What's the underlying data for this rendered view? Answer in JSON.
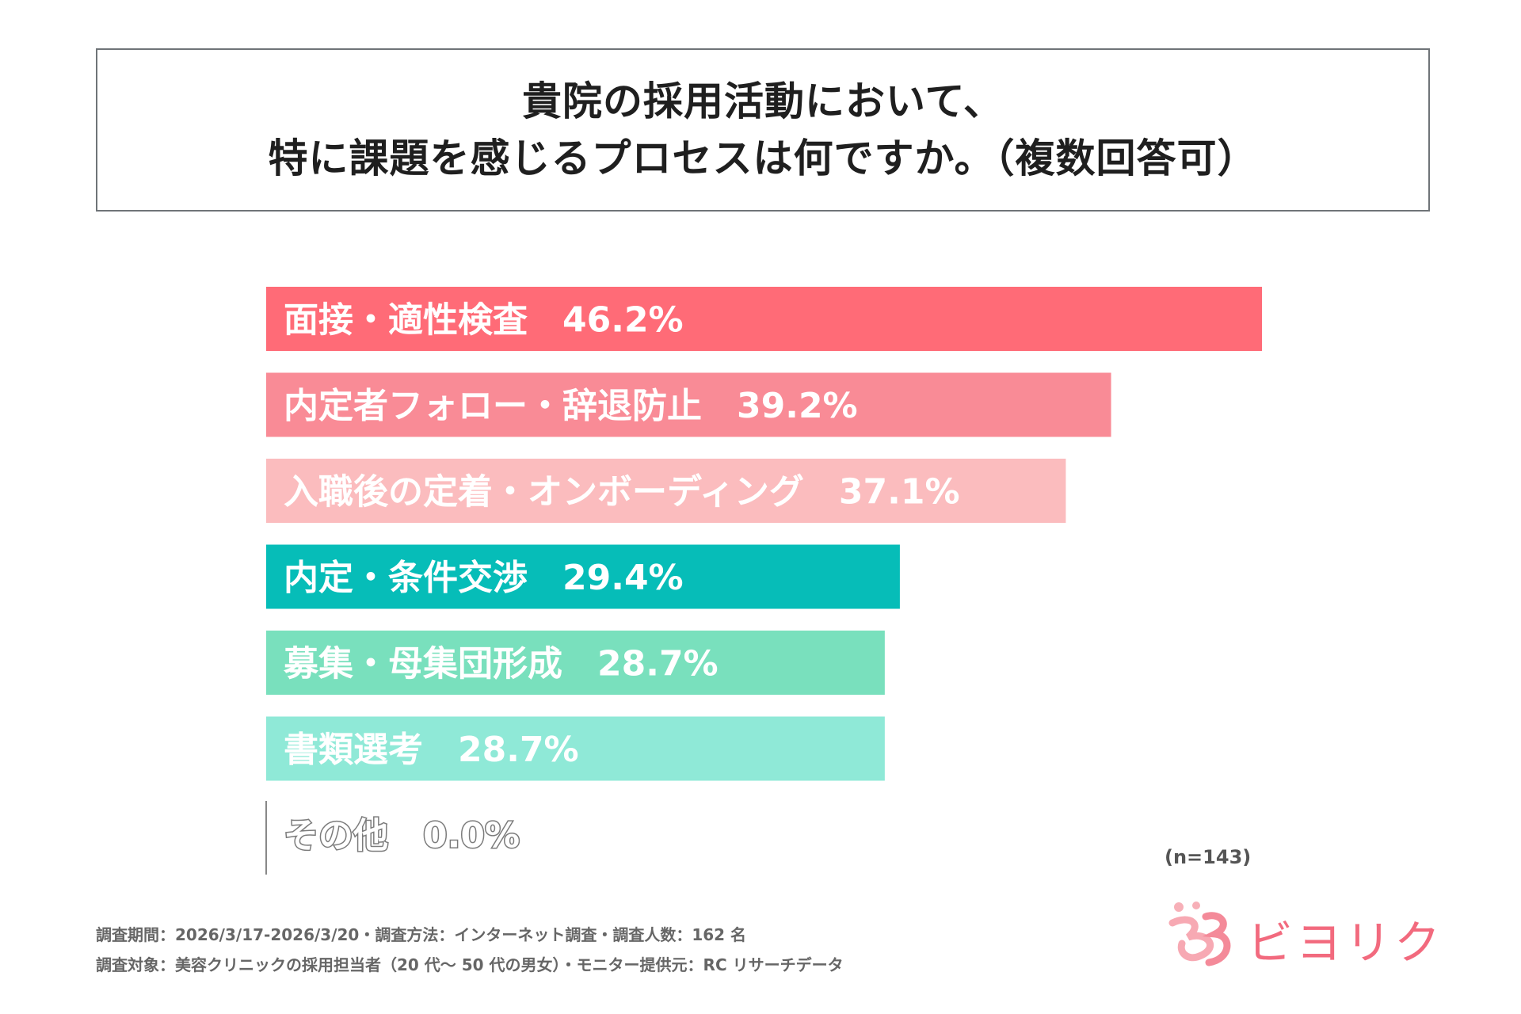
{
  "title": {
    "line1": "貴院の採用活動において、",
    "line2": "特に課題を感じるプロセスは何ですか。（複数回答可）"
  },
  "chart_data": {
    "type": "bar",
    "orientation": "horizontal",
    "title": "貴院の採用活動において、特に課題を感じるプロセスは何ですか。（複数回答可）",
    "categories": [
      "面接・適性検査",
      "内定者フォロー・辞退防止",
      "入職後の定着・オンボーディング",
      "内定・条件交渉",
      "募集・母集団形成",
      "書類選考",
      "その他"
    ],
    "values": [
      46.2,
      39.2,
      37.1,
      29.4,
      28.7,
      28.7,
      0.0
    ],
    "value_labels": [
      "46.2%",
      "39.2%",
      "37.1%",
      "29.4%",
      "28.7%",
      "28.7%",
      "0.0%"
    ],
    "colors": [
      "#ff6b77",
      "#f98b96",
      "#fbbcbe",
      "#06bdb8",
      "#79e0bd",
      "#8fe9d7",
      "#888888"
    ],
    "unit": "%",
    "xlim": [
      0,
      46.2
    ]
  },
  "sample_size": "(n=143)",
  "footnotes": {
    "line1": "調査期間：2026/3/17-2026/3/20・調査方法：インターネット調査・調査人数：162 名",
    "line2": "調査対象：美容クリニックの採用担当者（20 代〜 50 代の男女）・モニター提供元：RC リサーチデータ"
  },
  "logo": {
    "text": "ビヨリク",
    "color": "#f26a7e"
  }
}
